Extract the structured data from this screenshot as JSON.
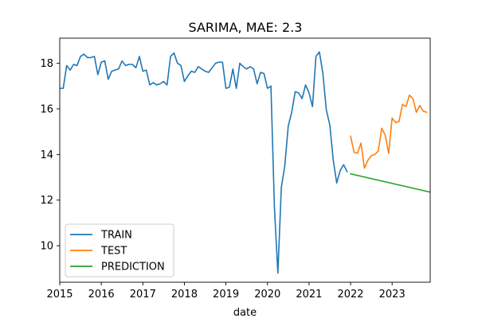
{
  "chart_data": {
    "type": "line",
    "title": "SARIMA, MAE: 2.3",
    "xlabel": "date",
    "ylabel": "",
    "x_ticks": [
      "2015",
      "2016",
      "2017",
      "2018",
      "2019",
      "2020",
      "2021",
      "2022",
      "2023"
    ],
    "y_ticks": [
      10,
      12,
      14,
      16,
      18
    ],
    "xlim": [
      "2015-01",
      "2023-12"
    ],
    "ylim": [
      8.4,
      19.1
    ],
    "grid": false,
    "legend_position": "lower-left",
    "series": [
      {
        "name": "TRAIN",
        "color": "#1f77b4",
        "points": [
          [
            "2015-01",
            16.9
          ],
          [
            "2015-02",
            16.9
          ],
          [
            "2015-03",
            17.9
          ],
          [
            "2015-04",
            17.7
          ],
          [
            "2015-05",
            17.95
          ],
          [
            "2015-06",
            17.9
          ],
          [
            "2015-07",
            18.3
          ],
          [
            "2015-08",
            18.4
          ],
          [
            "2015-09",
            18.25
          ],
          [
            "2015-10",
            18.25
          ],
          [
            "2015-11",
            18.3
          ],
          [
            "2015-12",
            17.5
          ],
          [
            "2016-01",
            18.05
          ],
          [
            "2016-02",
            18.1
          ],
          [
            "2016-03",
            17.3
          ],
          [
            "2016-04",
            17.65
          ],
          [
            "2016-05",
            17.7
          ],
          [
            "2016-06",
            17.75
          ],
          [
            "2016-07",
            18.1
          ],
          [
            "2016-08",
            17.9
          ],
          [
            "2016-09",
            17.95
          ],
          [
            "2016-10",
            17.95
          ],
          [
            "2016-11",
            17.8
          ],
          [
            "2016-12",
            18.3
          ],
          [
            "2017-01",
            17.65
          ],
          [
            "2017-02",
            17.7
          ],
          [
            "2017-03",
            17.05
          ],
          [
            "2017-04",
            17.15
          ],
          [
            "2017-05",
            17.05
          ],
          [
            "2017-06",
            17.1
          ],
          [
            "2017-07",
            17.2
          ],
          [
            "2017-08",
            17.05
          ],
          [
            "2017-09",
            18.3
          ],
          [
            "2017-10",
            18.45
          ],
          [
            "2017-11",
            18.0
          ],
          [
            "2017-12",
            17.9
          ],
          [
            "2018-01",
            17.2
          ],
          [
            "2018-02",
            17.45
          ],
          [
            "2018-03",
            17.65
          ],
          [
            "2018-04",
            17.6
          ],
          [
            "2018-05",
            17.85
          ],
          [
            "2018-06",
            17.75
          ],
          [
            "2018-07",
            17.65
          ],
          [
            "2018-08",
            17.6
          ],
          [
            "2018-09",
            17.8
          ],
          [
            "2018-10",
            18.0
          ],
          [
            "2018-11",
            18.05
          ],
          [
            "2018-12",
            18.05
          ],
          [
            "2019-01",
            16.9
          ],
          [
            "2019-02",
            16.95
          ],
          [
            "2019-03",
            17.75
          ],
          [
            "2019-04",
            16.9
          ],
          [
            "2019-05",
            18.0
          ],
          [
            "2019-06",
            17.85
          ],
          [
            "2019-07",
            17.75
          ],
          [
            "2019-08",
            17.85
          ],
          [
            "2019-09",
            17.75
          ],
          [
            "2019-10",
            17.1
          ],
          [
            "2019-11",
            17.6
          ],
          [
            "2019-12",
            17.55
          ],
          [
            "2020-01",
            16.9
          ],
          [
            "2020-02",
            17.0
          ],
          [
            "2020-03",
            11.7
          ],
          [
            "2020-04",
            8.8
          ],
          [
            "2020-05",
            12.55
          ],
          [
            "2020-06",
            13.5
          ],
          [
            "2020-07",
            15.25
          ],
          [
            "2020-08",
            15.85
          ],
          [
            "2020-09",
            16.75
          ],
          [
            "2020-10",
            16.7
          ],
          [
            "2020-11",
            16.45
          ],
          [
            "2020-12",
            17.05
          ],
          [
            "2021-01",
            16.7
          ],
          [
            "2021-02",
            16.1
          ],
          [
            "2021-03",
            18.3
          ],
          [
            "2021-04",
            18.5
          ],
          [
            "2021-05",
            17.55
          ],
          [
            "2021-06",
            15.95
          ],
          [
            "2021-07",
            15.3
          ],
          [
            "2021-08",
            13.75
          ],
          [
            "2021-09",
            12.75
          ],
          [
            "2021-10",
            13.3
          ],
          [
            "2021-11",
            13.55
          ],
          [
            "2021-12",
            13.25
          ]
        ]
      },
      {
        "name": "TEST",
        "color": "#ff7f0e",
        "points": [
          [
            "2022-01",
            14.8
          ],
          [
            "2022-02",
            14.1
          ],
          [
            "2022-03",
            14.05
          ],
          [
            "2022-04",
            14.5
          ],
          [
            "2022-05",
            13.4
          ],
          [
            "2022-06",
            13.75
          ],
          [
            "2022-07",
            13.95
          ],
          [
            "2022-08",
            14.0
          ],
          [
            "2022-09",
            14.15
          ],
          [
            "2022-10",
            15.15
          ],
          [
            "2022-11",
            14.85
          ],
          [
            "2022-12",
            14.05
          ],
          [
            "2023-01",
            15.6
          ],
          [
            "2023-02",
            15.4
          ],
          [
            "2023-03",
            15.45
          ],
          [
            "2023-04",
            16.2
          ],
          [
            "2023-05",
            16.1
          ],
          [
            "2023-06",
            16.6
          ],
          [
            "2023-07",
            16.45
          ],
          [
            "2023-08",
            15.85
          ],
          [
            "2023-09",
            16.15
          ],
          [
            "2023-10",
            15.9
          ],
          [
            "2023-11",
            15.85
          ]
        ]
      },
      {
        "name": "PREDICTION",
        "color": "#2ca02c",
        "points": [
          [
            "2022-01",
            13.15
          ],
          [
            "2023-12",
            12.35
          ]
        ]
      }
    ]
  }
}
